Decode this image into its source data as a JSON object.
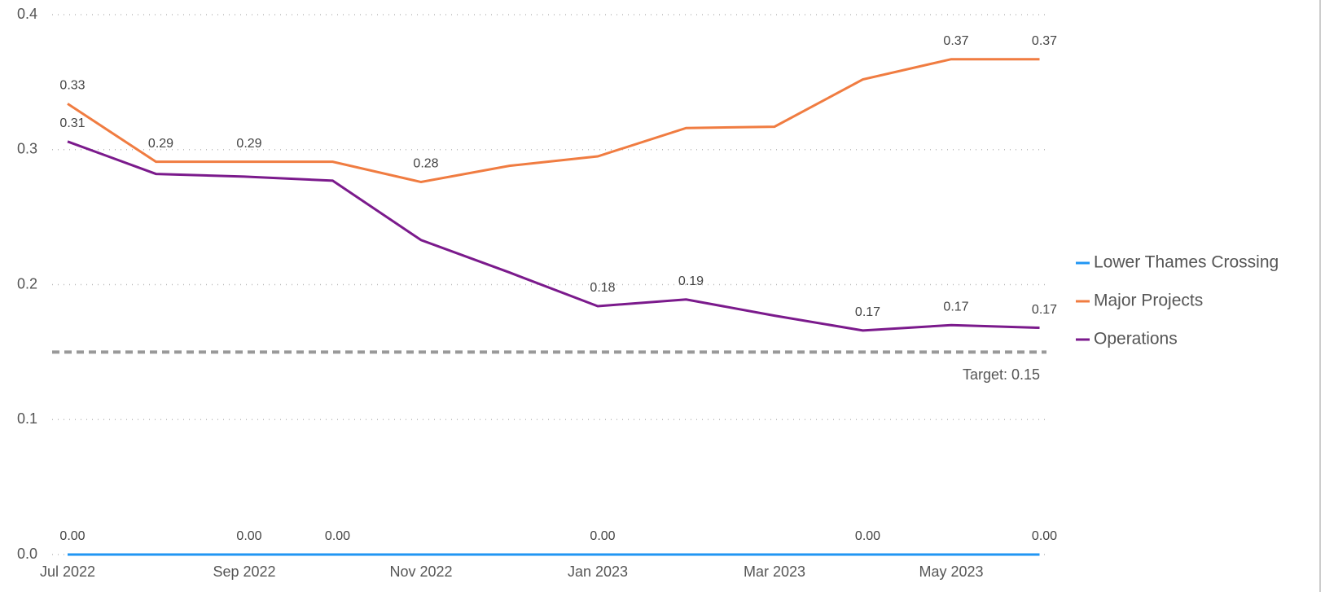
{
  "chart_data": {
    "type": "line",
    "categories": [
      "Jul 2022",
      null,
      "Sep 2022",
      null,
      "Nov 2022",
      null,
      "Jan 2023",
      null,
      "Mar 2023",
      null,
      "May 2023",
      null
    ],
    "series": [
      {
        "name": "Lower Thames Crossing",
        "color": "#2196f3",
        "values": [
          0,
          0,
          0,
          0,
          0,
          0,
          0,
          0,
          0,
          0,
          0,
          0
        ],
        "value_labels": [
          "0.00",
          null,
          "0.00",
          "0.00",
          null,
          null,
          "0.00",
          null,
          null,
          "0.00",
          null,
          "0.00"
        ]
      },
      {
        "name": "Major Projects",
        "color": "#f07c41",
        "values": [
          0.334,
          0.291,
          0.291,
          0.291,
          0.276,
          0.288,
          0.295,
          0.316,
          0.317,
          0.352,
          0.367,
          0.367
        ],
        "value_labels": [
          "0.33",
          "0.29",
          "0.29",
          null,
          "0.28",
          null,
          null,
          null,
          null,
          null,
          "0.37",
          "0.37"
        ]
      },
      {
        "name": "Operations",
        "color": "#7b1a8c",
        "values": [
          0.306,
          0.282,
          0.28,
          0.277,
          0.233,
          0.209,
          0.184,
          0.189,
          0.177,
          0.166,
          0.17,
          0.168
        ],
        "value_labels": [
          "0.31",
          null,
          null,
          null,
          null,
          null,
          "0.18",
          "0.19",
          null,
          "0.17",
          "0.17",
          "0.17"
        ]
      }
    ],
    "ylim": [
      0,
      0.4
    ],
    "yticks": [
      {
        "value": 0,
        "label": "0.0"
      },
      0.1,
      0.2,
      0.3,
      0.4
    ],
    "grid": true,
    "target": {
      "value": 0.15,
      "label": "Target: 0.15"
    },
    "legend": "right"
  }
}
